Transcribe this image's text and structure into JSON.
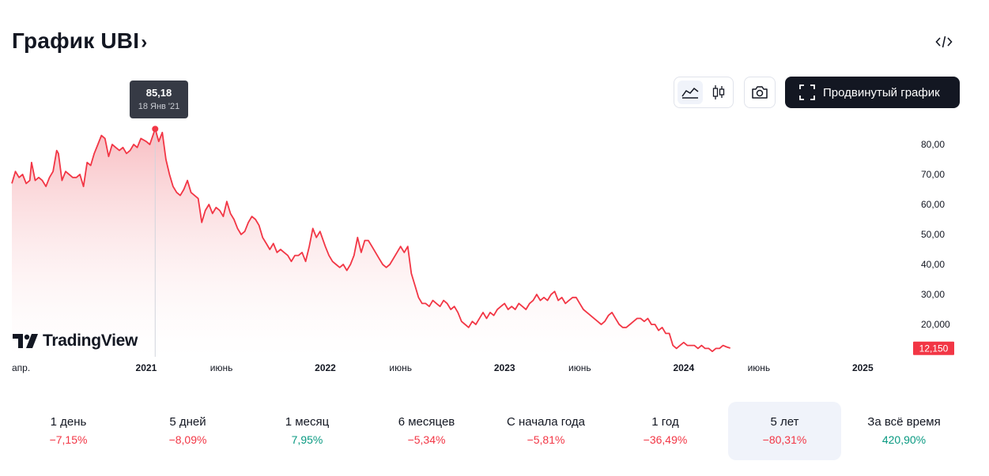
{
  "header": {
    "title": "График UBI",
    "title_chevron": "›",
    "embed_icon": "code-icon"
  },
  "toolbar": {
    "area_icon": "area-chart-icon",
    "candle_icon": "candlestick-icon",
    "camera_icon": "camera-icon",
    "advanced_icon": "fullscreen-icon",
    "advanced_label": "Продвинутый график"
  },
  "tooltip": {
    "value": "85,18",
    "date": "18 Янв '21"
  },
  "brand": {
    "logo_text": "TradingView"
  },
  "colors": {
    "line": "#f23645",
    "fill_top": "#f7b6bb",
    "price_tag": "#f23645",
    "positive": "#089981",
    "negative": "#f23645"
  },
  "chart_data": {
    "type": "area",
    "y_ticks": [
      "80,00",
      "70,00",
      "60,00",
      "50,00",
      "40,00",
      "30,00",
      "20,000"
    ],
    "y_tick_values": [
      80,
      70,
      60,
      50,
      40,
      30,
      20
    ],
    "ylim": [
      8,
      90
    ],
    "x_labels": [
      {
        "t": 2020.25,
        "label": "апр."
      },
      {
        "t": 2021.0,
        "label": "2021"
      },
      {
        "t": 2021.42,
        "label": "июнь"
      },
      {
        "t": 2022.0,
        "label": "2022"
      },
      {
        "t": 2022.42,
        "label": "июнь"
      },
      {
        "t": 2023.0,
        "label": "2023"
      },
      {
        "t": 2023.42,
        "label": "июнь"
      },
      {
        "t": 2024.0,
        "label": "2024"
      },
      {
        "t": 2024.42,
        "label": "июнь"
      },
      {
        "t": 2025.0,
        "label": "2025"
      }
    ],
    "xlim": [
      2020.25,
      2025.25
    ],
    "last_price": "12,150",
    "last_value": 12.15,
    "highlight": {
      "t": 2021.05,
      "v": 85.18
    },
    "series": [
      {
        "values": [
          [
            2020.25,
            67
          ],
          [
            2020.27,
            71
          ],
          [
            2020.29,
            69
          ],
          [
            2020.31,
            70
          ],
          [
            2020.33,
            67
          ],
          [
            2020.35,
            68
          ],
          [
            2020.36,
            74
          ],
          [
            2020.38,
            68
          ],
          [
            2020.4,
            69
          ],
          [
            2020.42,
            68
          ],
          [
            2020.44,
            66
          ],
          [
            2020.46,
            69
          ],
          [
            2020.48,
            71
          ],
          [
            2020.5,
            78
          ],
          [
            2020.51,
            77
          ],
          [
            2020.53,
            68
          ],
          [
            2020.55,
            71
          ],
          [
            2020.57,
            70
          ],
          [
            2020.59,
            69
          ],
          [
            2020.61,
            69
          ],
          [
            2020.63,
            70
          ],
          [
            2020.65,
            66
          ],
          [
            2020.67,
            74
          ],
          [
            2020.69,
            73
          ],
          [
            2020.71,
            77
          ],
          [
            2020.73,
            80
          ],
          [
            2020.75,
            83
          ],
          [
            2020.77,
            82
          ],
          [
            2020.79,
            76
          ],
          [
            2020.81,
            80
          ],
          [
            2020.83,
            79
          ],
          [
            2020.85,
            78
          ],
          [
            2020.87,
            79
          ],
          [
            2020.89,
            77
          ],
          [
            2020.91,
            78
          ],
          [
            2020.93,
            80
          ],
          [
            2020.95,
            79
          ],
          [
            2020.97,
            82
          ],
          [
            2021.0,
            81
          ],
          [
            2021.02,
            80
          ],
          [
            2021.05,
            85.2
          ],
          [
            2021.07,
            81
          ],
          [
            2021.09,
            84
          ],
          [
            2021.11,
            75
          ],
          [
            2021.13,
            70
          ],
          [
            2021.15,
            66
          ],
          [
            2021.17,
            64
          ],
          [
            2021.19,
            63
          ],
          [
            2021.21,
            65
          ],
          [
            2021.23,
            68
          ],
          [
            2021.25,
            64
          ],
          [
            2021.27,
            63
          ],
          [
            2021.29,
            62
          ],
          [
            2021.31,
            54
          ],
          [
            2021.33,
            58
          ],
          [
            2021.35,
            60
          ],
          [
            2021.37,
            57
          ],
          [
            2021.39,
            59
          ],
          [
            2021.41,
            58
          ],
          [
            2021.43,
            56
          ],
          [
            2021.45,
            61
          ],
          [
            2021.47,
            57
          ],
          [
            2021.49,
            55
          ],
          [
            2021.51,
            52
          ],
          [
            2021.53,
            50
          ],
          [
            2021.55,
            51
          ],
          [
            2021.57,
            54
          ],
          [
            2021.59,
            56
          ],
          [
            2021.61,
            55
          ],
          [
            2021.63,
            53
          ],
          [
            2021.65,
            49
          ],
          [
            2021.67,
            47
          ],
          [
            2021.69,
            45
          ],
          [
            2021.71,
            47
          ],
          [
            2021.73,
            44
          ],
          [
            2021.75,
            45
          ],
          [
            2021.77,
            44
          ],
          [
            2021.79,
            43
          ],
          [
            2021.81,
            41
          ],
          [
            2021.83,
            43
          ],
          [
            2021.85,
            43
          ],
          [
            2021.87,
            44
          ],
          [
            2021.89,
            41
          ],
          [
            2021.91,
            46
          ],
          [
            2021.93,
            52
          ],
          [
            2021.95,
            49
          ],
          [
            2021.97,
            51
          ],
          [
            2022.0,
            46
          ],
          [
            2022.02,
            43
          ],
          [
            2022.04,
            41
          ],
          [
            2022.06,
            40
          ],
          [
            2022.08,
            39
          ],
          [
            2022.1,
            40
          ],
          [
            2022.12,
            38
          ],
          [
            2022.14,
            40
          ],
          [
            2022.16,
            43
          ],
          [
            2022.18,
            49
          ],
          [
            2022.2,
            44
          ],
          [
            2022.22,
            48
          ],
          [
            2022.24,
            48
          ],
          [
            2022.26,
            46
          ],
          [
            2022.28,
            44
          ],
          [
            2022.3,
            42
          ],
          [
            2022.32,
            40
          ],
          [
            2022.34,
            39
          ],
          [
            2022.36,
            40
          ],
          [
            2022.38,
            42
          ],
          [
            2022.4,
            44
          ],
          [
            2022.42,
            46
          ],
          [
            2022.44,
            44
          ],
          [
            2022.46,
            46
          ],
          [
            2022.48,
            37
          ],
          [
            2022.5,
            33
          ],
          [
            2022.52,
            29
          ],
          [
            2022.54,
            27
          ],
          [
            2022.56,
            27
          ],
          [
            2022.58,
            26
          ],
          [
            2022.6,
            28
          ],
          [
            2022.62,
            27
          ],
          [
            2022.64,
            26
          ],
          [
            2022.66,
            28
          ],
          [
            2022.68,
            27
          ],
          [
            2022.7,
            25
          ],
          [
            2022.72,
            26
          ],
          [
            2022.74,
            24
          ],
          [
            2022.76,
            21
          ],
          [
            2022.78,
            20
          ],
          [
            2022.8,
            19
          ],
          [
            2022.82,
            21
          ],
          [
            2022.84,
            20
          ],
          [
            2022.86,
            22
          ],
          [
            2022.88,
            24
          ],
          [
            2022.9,
            22
          ],
          [
            2022.92,
            24
          ],
          [
            2022.94,
            23
          ],
          [
            2022.96,
            25
          ],
          [
            2022.98,
            26
          ],
          [
            2023.0,
            27
          ],
          [
            2023.02,
            25
          ],
          [
            2023.04,
            26
          ],
          [
            2023.06,
            25
          ],
          [
            2023.08,
            27
          ],
          [
            2023.1,
            26
          ],
          [
            2023.12,
            25
          ],
          [
            2023.14,
            27
          ],
          [
            2023.16,
            28
          ],
          [
            2023.18,
            30
          ],
          [
            2023.2,
            28
          ],
          [
            2023.22,
            29
          ],
          [
            2023.24,
            28
          ],
          [
            2023.26,
            30
          ],
          [
            2023.28,
            31
          ],
          [
            2023.3,
            28
          ],
          [
            2023.32,
            29
          ],
          [
            2023.34,
            27
          ],
          [
            2023.36,
            28
          ],
          [
            2023.38,
            29
          ],
          [
            2023.4,
            29
          ],
          [
            2023.42,
            27
          ],
          [
            2023.44,
            25
          ],
          [
            2023.46,
            24
          ],
          [
            2023.48,
            23
          ],
          [
            2023.5,
            22
          ],
          [
            2023.52,
            21
          ],
          [
            2023.54,
            20
          ],
          [
            2023.56,
            21
          ],
          [
            2023.58,
            23
          ],
          [
            2023.6,
            24
          ],
          [
            2023.62,
            22
          ],
          [
            2023.64,
            20
          ],
          [
            2023.66,
            19
          ],
          [
            2023.68,
            19
          ],
          [
            2023.7,
            20
          ],
          [
            2023.72,
            21
          ],
          [
            2023.74,
            22
          ],
          [
            2023.76,
            22
          ],
          [
            2023.78,
            21
          ],
          [
            2023.8,
            22
          ],
          [
            2023.82,
            20
          ],
          [
            2023.84,
            20
          ],
          [
            2023.86,
            18
          ],
          [
            2023.88,
            19
          ],
          [
            2023.9,
            17
          ],
          [
            2023.92,
            17
          ],
          [
            2023.94,
            13
          ],
          [
            2023.96,
            12
          ],
          [
            2023.98,
            13
          ],
          [
            2024.0,
            14
          ],
          [
            2024.02,
            13
          ],
          [
            2024.04,
            13
          ],
          [
            2024.06,
            13
          ],
          [
            2024.08,
            12
          ],
          [
            2024.1,
            13
          ],
          [
            2024.12,
            12
          ],
          [
            2024.14,
            12
          ],
          [
            2024.16,
            11
          ],
          [
            2024.18,
            12
          ],
          [
            2024.2,
            12
          ],
          [
            2024.22,
            13
          ],
          [
            2024.24,
            12.5
          ],
          [
            2024.26,
            12.1
          ]
        ]
      }
    ]
  },
  "periods": [
    {
      "label": "1 день",
      "value": "−7,15%",
      "sign": "neg"
    },
    {
      "label": "5 дней",
      "value": "−8,09%",
      "sign": "neg"
    },
    {
      "label": "1 месяц",
      "value": "7,95%",
      "sign": "pos"
    },
    {
      "label": "6 месяцев",
      "value": "−5,34%",
      "sign": "neg"
    },
    {
      "label": "С начала года",
      "value": "−5,81%",
      "sign": "neg"
    },
    {
      "label": "1 год",
      "value": "−36,49%",
      "sign": "neg"
    },
    {
      "label": "5 лет",
      "value": "−80,31%",
      "sign": "neg",
      "active": true
    },
    {
      "label": "За всё время",
      "value": "420,90%",
      "sign": "pos"
    }
  ]
}
